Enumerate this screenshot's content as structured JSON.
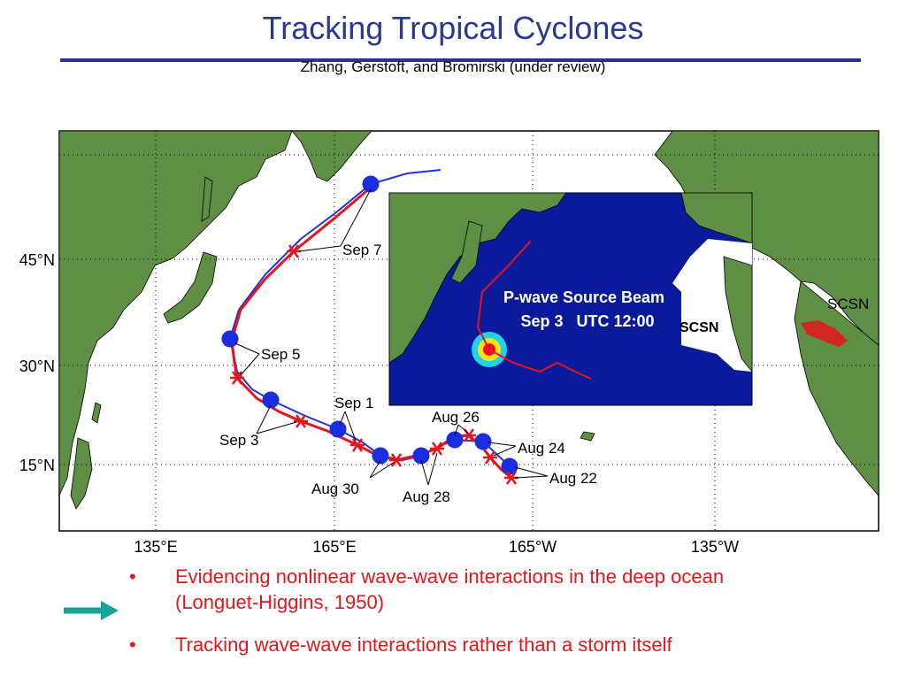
{
  "header": {
    "title": "Tracking Tropical Cyclones",
    "subtitle": "Zhang, Gerstoft, and Bromirski (under review)"
  },
  "map": {
    "lat_labels": [
      "45°N",
      "30°N",
      "15°N"
    ],
    "lon_labels": [
      "135°E",
      "165°E",
      "165°W",
      "135°W"
    ],
    "track_labels": [
      "Sep 7",
      "Sep 5",
      "Sep 3",
      "Sep 1",
      "Aug 30",
      "Aug 28",
      "Aug 26",
      "Aug 24",
      "Aug 22"
    ],
    "station_label": "SCSN"
  },
  "inset": {
    "title_lines": [
      "P-wave Source Beam",
      "Sep 3   UTC 12:00"
    ],
    "station_label": "SCSN"
  },
  "bullets": [
    [
      "Evidencing nonlinear wave-wave interactions in the deep ocean",
      "(Longuet-Higgins, 1950)"
    ],
    [
      "Tracking wave-wave interactions rather than a storm itself"
    ]
  ]
}
